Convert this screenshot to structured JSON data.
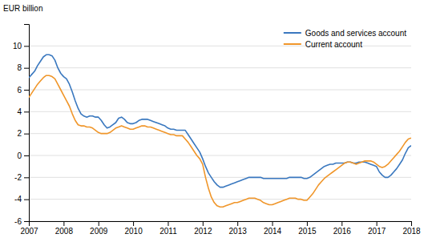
{
  "chart_data": {
    "type": "line",
    "ylabel": "EUR billion",
    "xlim": [
      2007.0,
      2018.0
    ],
    "ylim": [
      -6,
      12
    ],
    "yticks": [
      -6,
      -4,
      -2,
      0,
      2,
      4,
      6,
      8,
      10
    ],
    "xticks": [
      2007,
      2008,
      2009,
      2010,
      2011,
      2012,
      2013,
      2014,
      2015,
      2016,
      2017,
      2018
    ],
    "grid": true,
    "legend": "upper right",
    "x": [
      2007.0,
      2007.083,
      2007.167,
      2007.25,
      2007.333,
      2007.417,
      2007.5,
      2007.583,
      2007.667,
      2007.75,
      2007.833,
      2007.917,
      2008.0,
      2008.083,
      2008.167,
      2008.25,
      2008.333,
      2008.417,
      2008.5,
      2008.583,
      2008.667,
      2008.75,
      2008.833,
      2008.917,
      2009.0,
      2009.083,
      2009.167,
      2009.25,
      2009.333,
      2009.417,
      2009.5,
      2009.583,
      2009.667,
      2009.75,
      2009.833,
      2009.917,
      2010.0,
      2010.083,
      2010.167,
      2010.25,
      2010.333,
      2010.417,
      2010.5,
      2010.583,
      2010.667,
      2010.75,
      2010.833,
      2010.917,
      2011.0,
      2011.083,
      2011.167,
      2011.25,
      2011.333,
      2011.417,
      2011.5,
      2011.583,
      2011.667,
      2011.75,
      2011.833,
      2011.917,
      2012.0,
      2012.083,
      2012.167,
      2012.25,
      2012.333,
      2012.417,
      2012.5,
      2012.583,
      2012.667,
      2012.75,
      2012.833,
      2012.917,
      2013.0,
      2013.083,
      2013.167,
      2013.25,
      2013.333,
      2013.417,
      2013.5,
      2013.583,
      2013.667,
      2013.75,
      2013.833,
      2013.917,
      2014.0,
      2014.083,
      2014.167,
      2014.25,
      2014.333,
      2014.417,
      2014.5,
      2014.583,
      2014.667,
      2014.75,
      2014.833,
      2014.917,
      2015.0,
      2015.083,
      2015.167,
      2015.25,
      2015.333,
      2015.417,
      2015.5,
      2015.583,
      2015.667,
      2015.75,
      2015.833,
      2015.917,
      2016.0,
      2016.083,
      2016.167,
      2016.25,
      2016.333,
      2016.417,
      2016.5,
      2016.583,
      2016.667,
      2016.75,
      2016.833,
      2016.917,
      2017.0,
      2017.083,
      2017.167,
      2017.25,
      2017.333,
      2017.417,
      2017.5,
      2017.583,
      2017.667,
      2017.75,
      2017.833,
      2017.917,
      2018.0
    ],
    "series": [
      {
        "name": "Goods and services account",
        "color": "#3a78bf",
        "values": [
          7.1,
          7.4,
          7.7,
          8.2,
          8.6,
          9.0,
          9.2,
          9.2,
          9.1,
          8.7,
          8.0,
          7.5,
          7.2,
          7.0,
          6.5,
          5.8,
          5.0,
          4.3,
          3.8,
          3.6,
          3.5,
          3.6,
          3.6,
          3.5,
          3.5,
          3.2,
          2.8,
          2.5,
          2.6,
          2.8,
          3.0,
          3.4,
          3.5,
          3.3,
          3.0,
          2.9,
          2.9,
          3.0,
          3.2,
          3.3,
          3.3,
          3.3,
          3.2,
          3.1,
          3.0,
          2.9,
          2.8,
          2.7,
          2.5,
          2.4,
          2.4,
          2.3,
          2.3,
          2.3,
          2.3,
          1.9,
          1.5,
          1.1,
          0.7,
          0.3,
          -0.3,
          -1.0,
          -1.6,
          -2.0,
          -2.4,
          -2.7,
          -2.9,
          -2.9,
          -2.8,
          -2.7,
          -2.6,
          -2.5,
          -2.4,
          -2.3,
          -2.2,
          -2.1,
          -2.0,
          -2.0,
          -2.0,
          -2.0,
          -2.0,
          -2.1,
          -2.1,
          -2.1,
          -2.1,
          -2.1,
          -2.1,
          -2.1,
          -2.1,
          -2.1,
          -2.0,
          -2.0,
          -2.0,
          -2.0,
          -2.0,
          -2.1,
          -2.1,
          -2.0,
          -1.8,
          -1.6,
          -1.4,
          -1.2,
          -1.0,
          -0.9,
          -0.8,
          -0.8,
          -0.7,
          -0.7,
          -0.7,
          -0.7,
          -0.6,
          -0.6,
          -0.7,
          -0.7,
          -0.6,
          -0.6,
          -0.6,
          -0.7,
          -0.8,
          -0.9,
          -1.0,
          -1.5,
          -1.8,
          -2.0,
          -2.0,
          -1.8,
          -1.5,
          -1.2,
          -0.8,
          -0.4,
          0.2,
          0.7,
          0.9
        ]
      },
      {
        "name": "Current account",
        "color": "#f0962a",
        "values": [
          5.3,
          5.7,
          6.1,
          6.5,
          6.8,
          7.1,
          7.3,
          7.3,
          7.2,
          7.0,
          6.5,
          6.0,
          5.5,
          5.0,
          4.5,
          3.8,
          3.2,
          2.8,
          2.7,
          2.7,
          2.6,
          2.6,
          2.5,
          2.3,
          2.1,
          2.0,
          2.0,
          2.0,
          2.1,
          2.3,
          2.5,
          2.6,
          2.7,
          2.6,
          2.5,
          2.4,
          2.4,
          2.5,
          2.6,
          2.7,
          2.7,
          2.6,
          2.6,
          2.5,
          2.4,
          2.3,
          2.2,
          2.1,
          2.0,
          1.9,
          1.9,
          1.8,
          1.8,
          1.8,
          1.5,
          1.2,
          0.8,
          0.4,
          0.0,
          -0.3,
          -0.8,
          -2.0,
          -3.0,
          -3.8,
          -4.3,
          -4.6,
          -4.7,
          -4.7,
          -4.6,
          -4.5,
          -4.4,
          -4.3,
          -4.3,
          -4.2,
          -4.1,
          -4.0,
          -3.9,
          -3.9,
          -3.9,
          -4.0,
          -4.1,
          -4.3,
          -4.4,
          -4.5,
          -4.5,
          -4.4,
          -4.3,
          -4.2,
          -4.1,
          -4.0,
          -3.9,
          -3.9,
          -3.9,
          -4.0,
          -4.0,
          -4.1,
          -4.1,
          -3.8,
          -3.5,
          -3.1,
          -2.7,
          -2.4,
          -2.1,
          -1.9,
          -1.7,
          -1.5,
          -1.3,
          -1.1,
          -0.9,
          -0.7,
          -0.6,
          -0.6,
          -0.7,
          -0.8,
          -0.7,
          -0.6,
          -0.5,
          -0.5,
          -0.5,
          -0.6,
          -0.8,
          -1.0,
          -1.1,
          -1.0,
          -0.8,
          -0.5,
          -0.2,
          0.1,
          0.4,
          0.8,
          1.2,
          1.5,
          1.6
        ]
      }
    ]
  }
}
